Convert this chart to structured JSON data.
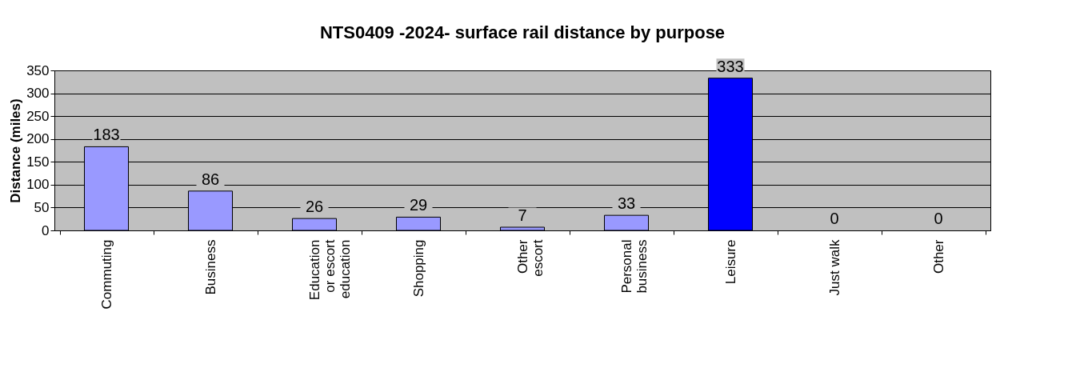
{
  "chart_data": {
    "type": "bar",
    "title": "NTS0409 -2024- surface rail distance by purpose",
    "ylabel": "Distance (miles)",
    "categories": [
      "Commuting",
      "Business",
      "Education or escort education",
      "Shopping",
      "Other escort",
      "Personal business",
      "Leisure",
      "Just walk",
      "Other"
    ],
    "values": [
      183,
      86,
      26,
      29,
      7,
      33,
      333,
      0,
      0
    ],
    "colors": [
      "#9999ff",
      "#9999ff",
      "#9999ff",
      "#9999ff",
      "#9999ff",
      "#9999ff",
      "#0000ff",
      "#9999ff",
      "#9999ff"
    ],
    "ylim": [
      0,
      350
    ],
    "yticks": [
      0,
      50,
      100,
      150,
      200,
      250,
      300,
      350
    ],
    "grid": "y",
    "data_labels": true
  }
}
